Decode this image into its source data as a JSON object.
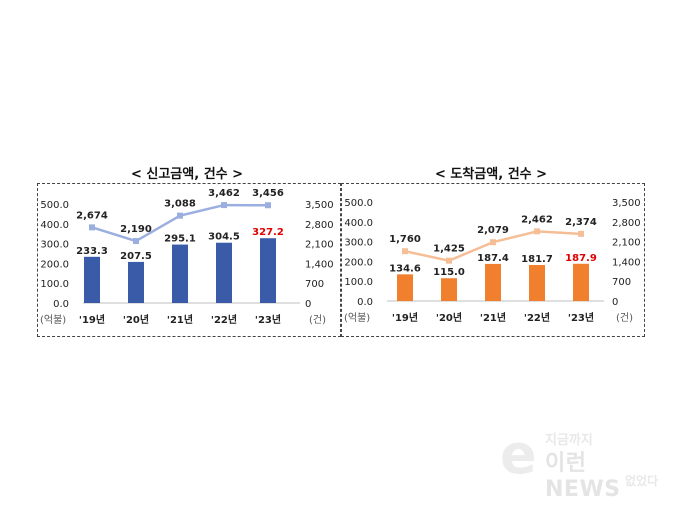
{
  "chart_data": [
    {
      "type": "bar",
      "title": "< 신고금액, 건수 >",
      "categories": [
        "'19년",
        "'20년",
        "'21년",
        "'22년",
        "'23년"
      ],
      "series": [
        {
          "kind": "bar",
          "axis": "left",
          "color": "#3a5ca8",
          "values": [
            233.3,
            207.5,
            295.1,
            304.5,
            327.2
          ],
          "labels": [
            "233.3",
            "207.5",
            "295.1",
            "304.5",
            "327.2"
          ],
          "label_colors": [
            "#222222",
            "#222222",
            "#222222",
            "#222222",
            "#e00000"
          ]
        },
        {
          "kind": "line",
          "axis": "right",
          "color": "#9aaee0",
          "values": [
            2674,
            2190,
            3088,
            3462,
            3456
          ],
          "labels": [
            "2,674",
            "2,190",
            "3,088",
            "3,462",
            "3,456"
          ]
        }
      ],
      "left_axis": {
        "ylim": [
          0,
          500
        ],
        "ticks": [
          "0.0",
          "100.0",
          "200.0",
          "300.0",
          "400.0",
          "500.0"
        ],
        "unit": "(억불)"
      },
      "right_axis": {
        "ylim": [
          0,
          3500
        ],
        "ticks": [
          "0",
          "700",
          "1,400",
          "2,100",
          "2,800",
          "3,500"
        ],
        "unit": "(건)"
      }
    },
    {
      "type": "bar",
      "title": "< 도착금액, 건수 >",
      "categories": [
        "'19년",
        "'20년",
        "'21년",
        "'22년",
        "'23년"
      ],
      "series": [
        {
          "kind": "bar",
          "axis": "left",
          "color": "#f07f2e",
          "values": [
            134.6,
            115.0,
            187.4,
            181.7,
            187.9
          ],
          "labels": [
            "134.6",
            "115.0",
            "187.4",
            "181.7",
            "187.9"
          ],
          "label_colors": [
            "#222222",
            "#222222",
            "#222222",
            "#222222",
            "#e00000"
          ]
        },
        {
          "kind": "line",
          "axis": "right",
          "color": "#f5be96",
          "values": [
            1760,
            1425,
            2079,
            2462,
            2374
          ],
          "labels": [
            "1,760",
            "1,425",
            "2,079",
            "2,462",
            "2,374"
          ]
        }
      ],
      "left_axis": {
        "ylim": [
          0,
          500
        ],
        "ticks": [
          "0.0",
          "100.0",
          "200.0",
          "300.0",
          "400.0",
          "500.0"
        ],
        "unit": "(억불)"
      },
      "right_axis": {
        "ylim": [
          0,
          3500
        ],
        "ticks": [
          "0",
          "700",
          "1,400",
          "2,100",
          "2,800",
          "3,500"
        ],
        "unit": "(건)"
      }
    }
  ],
  "watermark": {
    "line1": "지금까지",
    "line2": "이런 NEWS",
    "line3": "없었다",
    "logo_letter": "e"
  }
}
